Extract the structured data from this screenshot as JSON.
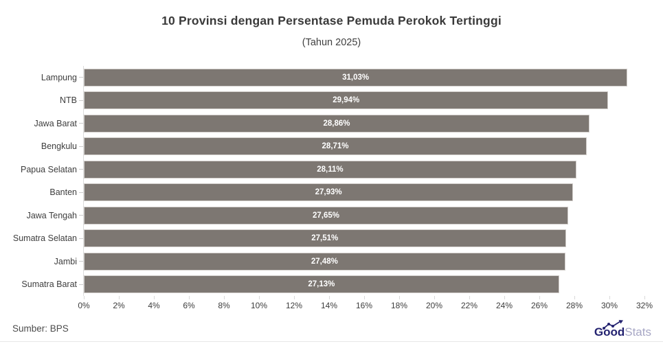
{
  "title": "10 Provinsi dengan Persentase Pemuda Perokok Tertinggi",
  "subtitle": "(Tahun 2025)",
  "source": "Sumber: BPS",
  "brand": {
    "bold": "Good",
    "light": "Stats",
    "bold_color": "#232270",
    "light_color": "#a7a7c5"
  },
  "chart_data": {
    "type": "bar",
    "orientation": "horizontal",
    "title": "10 Provinsi dengan Persentase Pemuda Perokok Tertinggi",
    "subtitle": "(Tahun 2025)",
    "categories": [
      "Lampung",
      "NTB",
      "Jawa Barat",
      "Bengkulu",
      "Papua Selatan",
      "Banten",
      "Jawa Tengah",
      "Sumatra Selatan",
      "Jambi",
      "Sumatra Barat"
    ],
    "values": [
      31.03,
      29.94,
      28.86,
      28.71,
      28.11,
      27.93,
      27.65,
      27.51,
      27.48,
      27.13
    ],
    "value_labels": [
      "31,03%",
      "29,94%",
      "28,86%",
      "28,71%",
      "28,11%",
      "27,93%",
      "27,65%",
      "27,51%",
      "27,48%",
      "27,13%"
    ],
    "xlim": [
      0,
      32
    ],
    "x_tick_step": 2,
    "x_tick_labels": [
      "0%",
      "2%",
      "4%",
      "6%",
      "8%",
      "10%",
      "12%",
      "14%",
      "16%",
      "18%",
      "20%",
      "22%",
      "24%",
      "26%",
      "28%",
      "30%",
      "32%"
    ],
    "bar_color": "#7d7772",
    "value_label_color": "#ffffff",
    "grid": false,
    "legend": false,
    "source": "Sumber: BPS"
  }
}
